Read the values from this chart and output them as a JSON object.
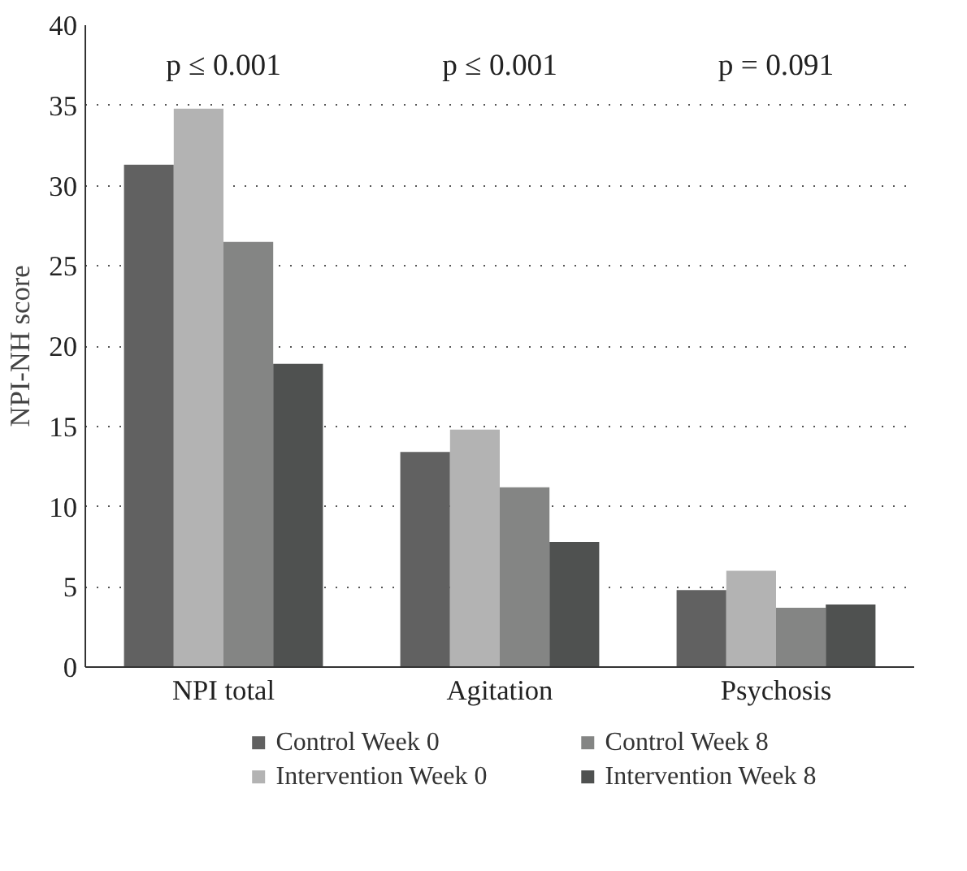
{
  "chart_data": {
    "type": "bar",
    "ylabel": "NPI-NH score",
    "categories": [
      "NPI total",
      "Agitation",
      "Psychosis"
    ],
    "series": [
      {
        "name": "Control Week 0",
        "color": "#616161",
        "values": [
          31.3,
          13.4,
          4.8
        ]
      },
      {
        "name": "Intervention Week 0",
        "color": "#b3b3b3",
        "values": [
          34.8,
          14.8,
          6.0
        ]
      },
      {
        "name": "Control Week 8",
        "color": "#848584",
        "values": [
          26.5,
          11.2,
          3.7
        ]
      },
      {
        "name": "Intervention Week 8",
        "color": "#4f5150",
        "values": [
          18.9,
          7.8,
          3.9
        ]
      }
    ],
    "ylim": [
      0,
      40
    ],
    "yticks": [
      0,
      5,
      10,
      15,
      20,
      25,
      30,
      35,
      40
    ],
    "grid": "y",
    "legend": "bottom",
    "annotations": [
      "p ≤ 0.001",
      "p ≤ 0.001",
      "p = 0.091"
    ]
  }
}
